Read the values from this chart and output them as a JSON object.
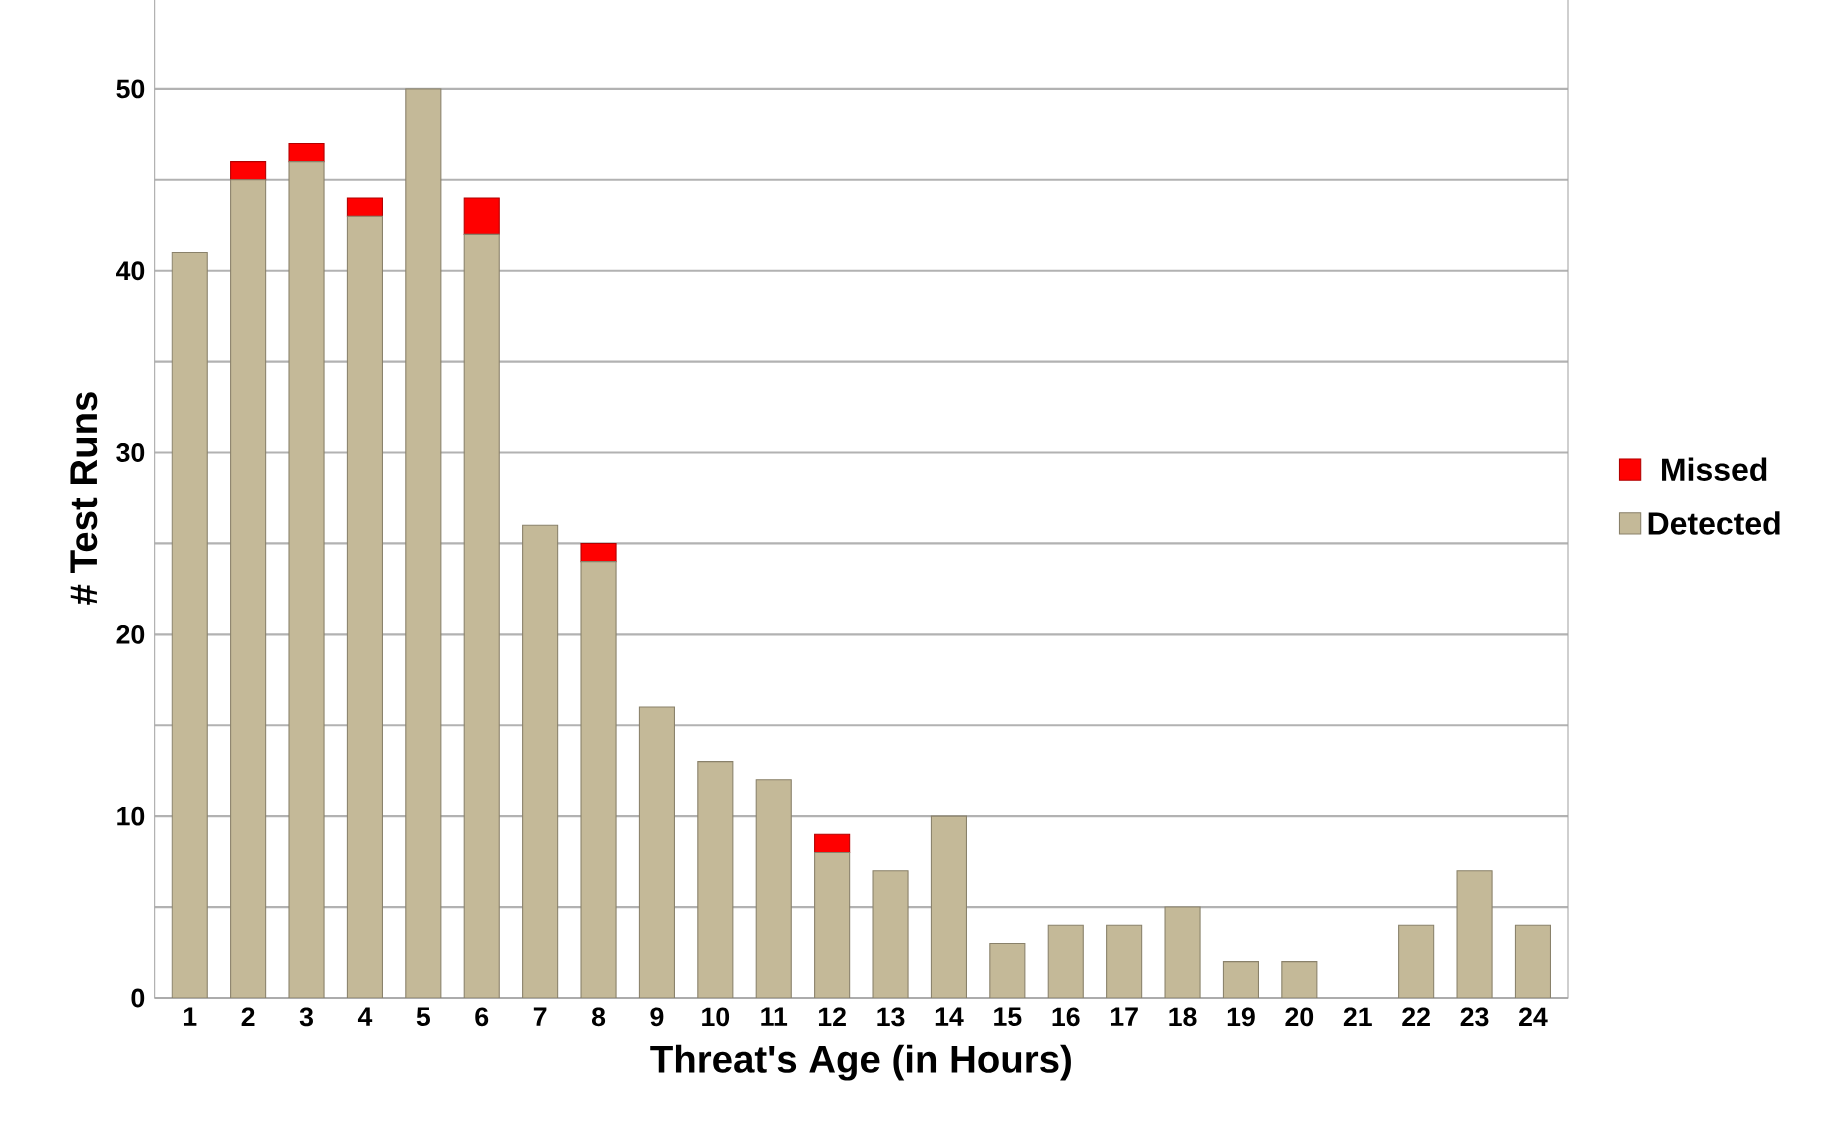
{
  "chart_data": {
    "type": "bar",
    "stacked": true,
    "xlabel": "Threat's Age (in Hours)",
    "ylabel": "# Test Runs",
    "categories": [
      "1",
      "2",
      "3",
      "4",
      "5",
      "6",
      "7",
      "8",
      "9",
      "10",
      "11",
      "12",
      "13",
      "14",
      "15",
      "16",
      "17",
      "18",
      "19",
      "20",
      "21",
      "22",
      "23",
      "24"
    ],
    "series": [
      {
        "name": "Detected",
        "color": "#c4b998",
        "values": [
          41,
          45,
          46,
          43,
          50,
          42,
          26,
          24,
          16,
          13,
          12,
          8,
          7,
          10,
          3,
          4,
          4,
          5,
          2,
          2,
          0,
          4,
          7,
          4
        ]
      },
      {
        "name": "Missed",
        "color": "#ff0000",
        "values": [
          0,
          1,
          1,
          1,
          0,
          2,
          0,
          1,
          0,
          0,
          0,
          1,
          0,
          0,
          0,
          0,
          0,
          0,
          0,
          0,
          0,
          0,
          0,
          0
        ]
      }
    ],
    "ylim": [
      0,
      55
    ],
    "yticks": [
      0,
      {
        "value": 5,
        "label": null
      },
      10,
      {
        "value": 15,
        "label": null
      },
      20,
      {
        "value": 25,
        "label": null
      },
      30,
      {
        "value": 35,
        "label": null
      },
      40,
      {
        "value": 45,
        "label": null
      },
      50,
      {
        "value": 55,
        "label": null
      }
    ],
    "grid": "y",
    "legend": "right"
  }
}
